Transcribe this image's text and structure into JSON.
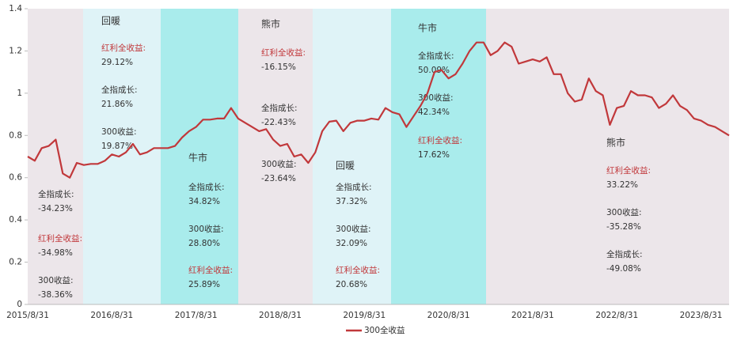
{
  "chart_data": {
    "type": "line",
    "categories": [
      "2015/8/31",
      null,
      null,
      null,
      null,
      null,
      null,
      null,
      null,
      null,
      null,
      null,
      "2016/8/31",
      null,
      null,
      null,
      null,
      null,
      null,
      null,
      null,
      null,
      null,
      null,
      "2017/8/31",
      null,
      null,
      null,
      null,
      null,
      null,
      null,
      null,
      null,
      null,
      null,
      "2018/8/31",
      null,
      null,
      null,
      null,
      null,
      null,
      null,
      null,
      null,
      null,
      null,
      "2019/8/31",
      null,
      null,
      null,
      null,
      null,
      null,
      null,
      null,
      null,
      null,
      null,
      "2020/8/31",
      null,
      null,
      null,
      null,
      null,
      null,
      null,
      null,
      null,
      null,
      null,
      "2021/8/31",
      null,
      null,
      null,
      null,
      null,
      null,
      null,
      null,
      null,
      null,
      null,
      "2022/8/31",
      null,
      null,
      null,
      null,
      null,
      null,
      null,
      null,
      null,
      null,
      null,
      "2023/8/31",
      null,
      null,
      null,
      null
    ],
    "series": [
      {
        "name": "300全收益",
        "color": "#c1383b",
        "values": [
          0.7,
          0.68,
          0.74,
          0.75,
          0.78,
          0.62,
          0.6,
          0.67,
          0.66,
          0.665,
          0.665,
          0.68,
          0.71,
          0.7,
          0.72,
          0.76,
          0.71,
          0.72,
          0.74,
          0.74,
          0.74,
          0.75,
          0.79,
          0.82,
          0.84,
          0.875,
          0.875,
          0.88,
          0.88,
          0.93,
          0.88,
          0.86,
          0.84,
          0.82,
          0.83,
          0.78,
          0.75,
          0.76,
          0.7,
          0.71,
          0.67,
          0.72,
          0.82,
          0.865,
          0.87,
          0.82,
          0.86,
          0.87,
          0.87,
          0.88,
          0.875,
          0.93,
          0.91,
          0.9,
          0.84,
          0.89,
          0.94,
          1.0,
          1.1,
          1.11,
          1.07,
          1.09,
          1.14,
          1.2,
          1.24,
          1.24,
          1.18,
          1.2,
          1.24,
          1.22,
          1.14,
          1.15,
          1.16,
          1.15,
          1.17,
          1.09,
          1.09,
          1.0,
          0.96,
          0.97,
          1.07,
          1.01,
          0.99,
          0.85,
          0.93,
          0.94,
          1.01,
          0.99,
          0.99,
          0.98,
          0.93,
          0.95,
          0.99,
          0.94,
          0.92,
          0.88,
          0.87,
          0.85,
          0.84,
          0.82,
          0.8
        ]
      }
    ],
    "ylim": [
      0,
      1.4
    ],
    "yticks": [
      0,
      0.2,
      0.4,
      0.6,
      0.8,
      1,
      1.2,
      1.4
    ],
    "grid": false,
    "legend": "bottom"
  },
  "annotations": [
    {
      "items": [
        {
          "label": "全指成长:",
          "value": "-34.23%"
        },
        {
          "label": "红利全收益:",
          "value": "-34.98%",
          "color": "#c1383b"
        },
        {
          "label": "300收益:",
          "value": "-38.36%"
        }
      ]
    },
    {
      "title": "回暖",
      "items": [
        {
          "label": "红利全收益:",
          "value": "29.12%",
          "color": "#c1383b"
        },
        {
          "label": "全指成长:",
          "value": "21.86%"
        },
        {
          "label": "300收益:",
          "value": "19.87%"
        }
      ]
    },
    {
      "title": "牛市",
      "items": [
        {
          "label": "全指成长:",
          "value": "34.82%"
        },
        {
          "label": "300收益:",
          "value": "28.80%"
        },
        {
          "label": "红利全收益:",
          "value": "25.89%",
          "color": "#c1383b"
        }
      ]
    },
    {
      "title": "熊市",
      "items": [
        {
          "label": "红利全收益:",
          "value": "-16.15%",
          "color": "#c1383b"
        },
        {
          "label": "全指成长:",
          "value": "-22.43%"
        },
        {
          "label": "300收益:",
          "value": "-23.64%"
        }
      ]
    },
    {
      "title": "回暖",
      "items": [
        {
          "label": "全指成长:",
          "value": "37.32%"
        },
        {
          "label": "300收益:",
          "value": "32.09%"
        },
        {
          "label": "红利全收益:",
          "value": "20.68%",
          "color": "#c1383b"
        }
      ]
    },
    {
      "title": "牛市",
      "items": [
        {
          "label": "全指成长:",
          "value": "50.09%"
        },
        {
          "label": "300收益:",
          "value": "42.34%"
        },
        {
          "label": "红利全收益:",
          "value": "17.62%",
          "color": "#c1383b"
        }
      ]
    },
    {
      "title": "熊市",
      "items": [
        {
          "label": "红利全收益:",
          "value": "33.22%",
          "color": "#c1383b"
        },
        {
          "label": "300收益:",
          "value": "-35.28%"
        },
        {
          "label": "全指成长:",
          "value": "-49.08%"
        }
      ]
    }
  ]
}
